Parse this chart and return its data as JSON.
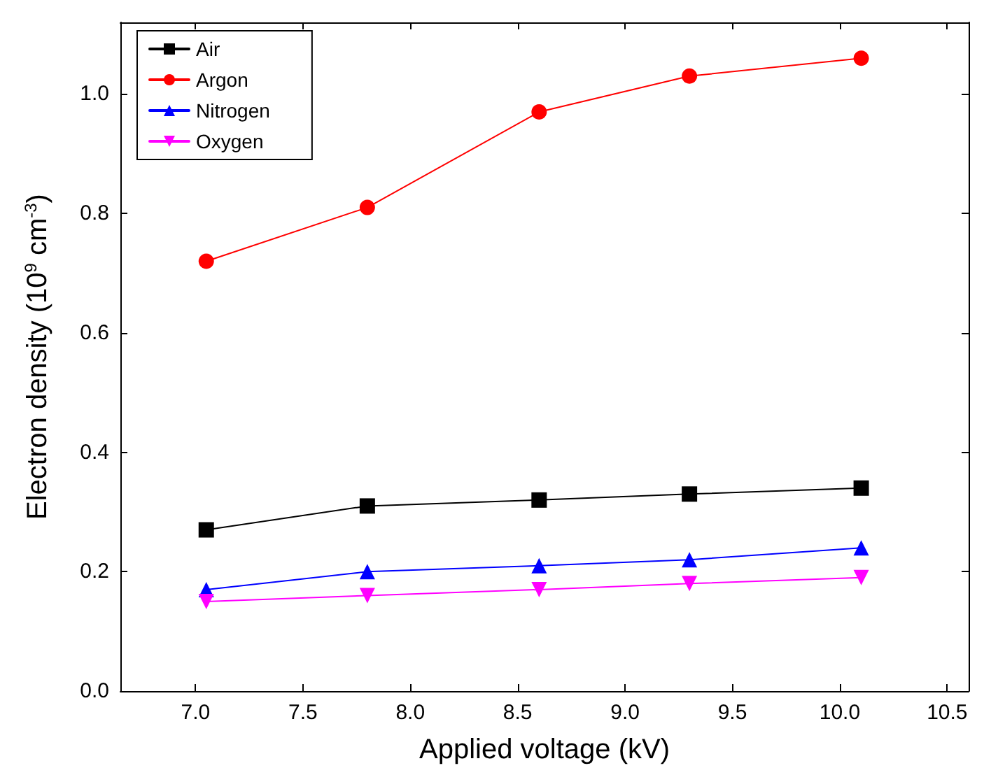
{
  "chart_data": {
    "type": "line",
    "xlabel": "Applied voltage (kV)",
    "ylabel": "Electron density (10$^{9}$ cm$^{-3}$)",
    "x": [
      7.05,
      7.8,
      8.6,
      9.3,
      10.1
    ],
    "series": [
      {
        "name": "Air",
        "color": "#000000",
        "marker": "square",
        "values": [
          0.27,
          0.31,
          0.32,
          0.33,
          0.34
        ]
      },
      {
        "name": "Argon",
        "color": "#ff0000",
        "marker": "circle",
        "values": [
          0.72,
          0.81,
          0.97,
          1.03,
          1.06
        ]
      },
      {
        "name": "Nitrogen",
        "color": "#0000ff",
        "marker": "triangle",
        "values": [
          0.17,
          0.2,
          0.21,
          0.22,
          0.24
        ]
      },
      {
        "name": "Oxygen",
        "color": "#ff00ff",
        "marker": "triangle-down",
        "values": [
          0.15,
          0.16,
          0.17,
          0.18,
          0.19
        ]
      }
    ],
    "xlim": [
      6.65,
      10.6
    ],
    "xticks": [
      {
        "value": 7,
        "label": "7.0"
      },
      7.5,
      {
        "value": 8,
        "label": "8.0"
      },
      8.5,
      {
        "value": 9,
        "label": "9.0"
      },
      9.5,
      {
        "value": 10,
        "label": "10.0"
      },
      10.5
    ],
    "ylim": [
      0,
      1.12
    ],
    "yticks": [
      {
        "value": 0,
        "label": "0.0"
      },
      0.2,
      0.4,
      0.6,
      0.8,
      {
        "value": 1,
        "label": "1.0"
      }
    ],
    "grid": false,
    "legend": "top left",
    "line_style": "solid"
  }
}
